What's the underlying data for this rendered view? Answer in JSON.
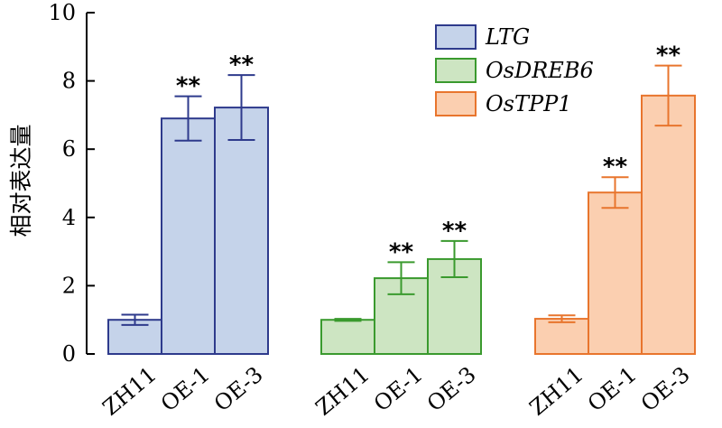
{
  "chart_data": {
    "type": "bar",
    "ylabel": "相对表达量",
    "xlabel": "",
    "ylim": [
      0,
      10
    ],
    "yticks": [
      0,
      2,
      4,
      6,
      8,
      10
    ],
    "grid": false,
    "legend_position": "top-right",
    "series": [
      {
        "name": "LTG",
        "color": "#c5d3ea",
        "edge": "#2e3a8c",
        "categories": [
          "ZH11",
          "OE-1",
          "OE-3"
        ],
        "values": [
          1.0,
          6.9,
          7.22
        ],
        "errors": [
          0.15,
          0.65,
          0.95
        ],
        "significance": [
          "",
          "**",
          "**"
        ]
      },
      {
        "name": "OsDREB6",
        "color": "#cde5c2",
        "edge": "#3a9a2e",
        "categories": [
          "ZH11",
          "OE-1",
          "OE-3"
        ],
        "values": [
          1.0,
          2.22,
          2.78
        ],
        "errors": [
          0.03,
          0.47,
          0.53
        ],
        "significance": [
          "",
          "**",
          "**"
        ]
      },
      {
        "name": "OsTPP1",
        "color": "#fbcfb0",
        "edge": "#e8752d",
        "categories": [
          "ZH11",
          "OE-1",
          "OE-3"
        ],
        "values": [
          1.03,
          4.73,
          7.57
        ],
        "errors": [
          0.1,
          0.45,
          0.88
        ],
        "significance": [
          "",
          "**",
          "**"
        ]
      }
    ]
  }
}
